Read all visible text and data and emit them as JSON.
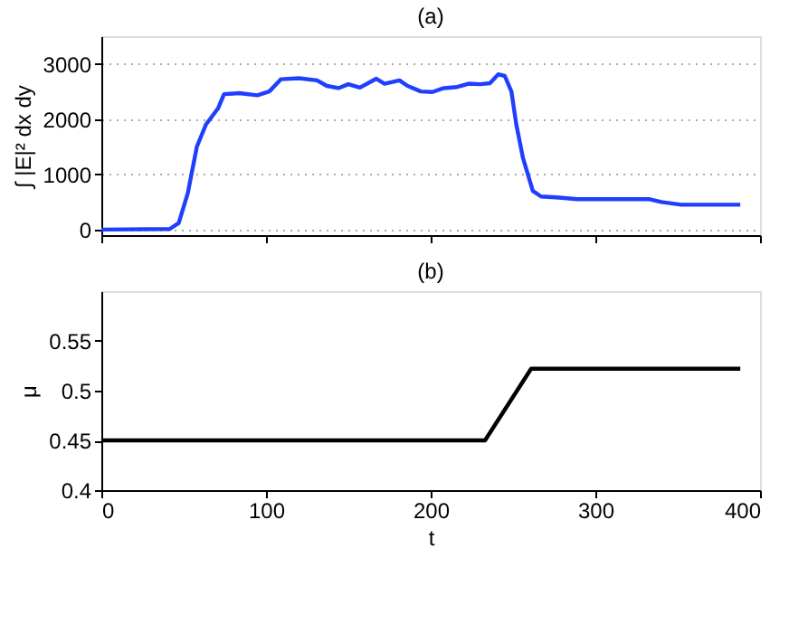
{
  "chart_data": [
    {
      "type": "line",
      "title": "(a)",
      "ylabel": "∫ |E|² dx dy",
      "xlim": [
        0,
        400
      ],
      "xticks": [
        0,
        100,
        200,
        300,
        400
      ],
      "ylim": [
        -100,
        3500
      ],
      "yticks": [
        0,
        1000,
        2000,
        3000
      ],
      "grid": "y",
      "tick_labels": "y",
      "series": [
        {
          "color": "#1f3fff",
          "x": [
            0,
            41.5,
            47,
            52.5,
            58,
            63.5,
            71,
            74.5,
            83.7,
            94.7,
            102,
            109,
            120,
            131,
            137,
            144,
            150,
            157,
            167,
            172,
            181,
            186,
            194,
            201,
            208,
            216,
            223,
            230,
            236,
            241,
            245,
            249,
            252,
            256,
            262,
            267,
            278,
            289,
            304,
            333,
            340,
            352,
            388
          ],
          "values": [
            0,
            10,
            120,
            660,
            1500,
            1900,
            2200,
            2450,
            2470,
            2430,
            2500,
            2720,
            2740,
            2700,
            2600,
            2560,
            2630,
            2570,
            2730,
            2640,
            2700,
            2600,
            2500,
            2490,
            2560,
            2580,
            2640,
            2630,
            2650,
            2810,
            2780,
            2500,
            1900,
            1300,
            700,
            600,
            580,
            550,
            550,
            550,
            500,
            450,
            450
          ]
        }
      ]
    },
    {
      "type": "line",
      "title": "(b)",
      "xlabel": "t",
      "ylabel": "μ",
      "xlim": [
        0,
        400
      ],
      "xticks": [
        0,
        100,
        200,
        300,
        400
      ],
      "ylim": [
        0.4,
        0.6
      ],
      "yticks": [
        0.4,
        0.45,
        0.5,
        0.55
      ],
      "grid": false,
      "series": [
        {
          "color": "#000000",
          "x": [
            0,
            233,
            261,
            388
          ],
          "values": [
            0.45,
            0.45,
            0.522,
            0.522
          ]
        }
      ]
    }
  ]
}
